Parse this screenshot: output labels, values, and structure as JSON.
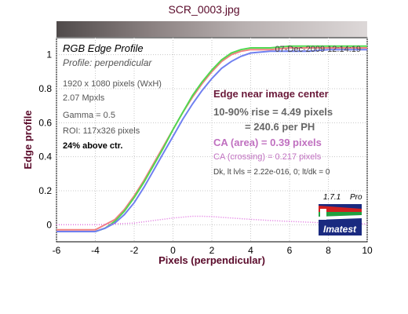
{
  "window_title": "SCR_0003.jpg",
  "logo": {
    "version": "1.7.1",
    "edition": "Pro",
    "brand": "Imatest"
  },
  "chart_data": {
    "type": "line",
    "title": "RGB Edge Profile",
    "subtitle": "Profile: perpendicular",
    "date": "07-Dec-2009 12:14:19",
    "xlabel": "Pixels (perpendicular)",
    "ylabel": "Edge profile",
    "xlim": [
      -6,
      10
    ],
    "ylim": [
      -0.1,
      1.1
    ],
    "xticks": [
      "-6",
      "-4",
      "-2",
      "0",
      "2",
      "4",
      "6",
      "8",
      "10"
    ],
    "yticks": [
      "0",
      "0.2",
      "0.4",
      "0.6",
      "0.8",
      "1"
    ],
    "grid": true,
    "info_lines": [
      "1920 x 1080 pixels (WxH)",
      "2.07 Mpxls",
      "Gamma = 0.5",
      "ROI: 117x326 pixels"
    ],
    "info_bold": "24% above ctr.",
    "annotations": {
      "heading": "Edge near image center",
      "rise": "10-90% rise = 4.49 pixels",
      "per_ph": "= 240.6 per PH",
      "ca_area": "CA (area) = 0.39 pixels",
      "ca_crossing": "CA (crossing) = 0.217 pixels",
      "dk_line": "Dk, lt lvls = 2.22e-016, 0;  lt/dk = 0"
    },
    "series": [
      {
        "color": "#f08080",
        "x": [
          -6,
          -4.5,
          -4,
          -3.5,
          -3,
          -2.5,
          -2,
          -1.5,
          -1,
          -0.5,
          0,
          0.5,
          1,
          1.5,
          2,
          2.5,
          3,
          3.5,
          4,
          5,
          6,
          7,
          8,
          9,
          10
        ],
        "y": [
          -0.03,
          -0.03,
          -0.03,
          0,
          0.03,
          0.09,
          0.17,
          0.26,
          0.36,
          0.46,
          0.56,
          0.66,
          0.75,
          0.83,
          0.9,
          0.96,
          1.0,
          1.02,
          1.03,
          1.03,
          1.04,
          1.04,
          1.04,
          1.04,
          1.04
        ]
      },
      {
        "color": "#50d850",
        "x": [
          -6,
          -4.5,
          -4,
          -3.5,
          -3,
          -2.5,
          -2,
          -1.5,
          -1,
          -0.5,
          0,
          0.5,
          1,
          1.5,
          2,
          2.5,
          3,
          3.5,
          4,
          5,
          6,
          7,
          8,
          9,
          10
        ],
        "y": [
          -0.04,
          -0.04,
          -0.04,
          -0.02,
          0.02,
          0.08,
          0.16,
          0.25,
          0.35,
          0.45,
          0.56,
          0.66,
          0.76,
          0.84,
          0.91,
          0.97,
          1.01,
          1.03,
          1.04,
          1.04,
          1.05,
          1.05,
          1.05,
          1.05,
          1.05
        ]
      },
      {
        "color": "#7080f0",
        "x": [
          -6,
          -4.5,
          -4,
          -3.5,
          -3,
          -2.5,
          -2,
          -1.5,
          -1,
          -0.5,
          0,
          0.5,
          1,
          1.5,
          2,
          2.5,
          3,
          3.5,
          4,
          5,
          6,
          7,
          8,
          9,
          10
        ],
        "y": [
          -0.04,
          -0.04,
          -0.04,
          -0.02,
          0.01,
          0.06,
          0.13,
          0.22,
          0.32,
          0.42,
          0.52,
          0.62,
          0.71,
          0.79,
          0.86,
          0.92,
          0.96,
          0.99,
          1.01,
          1.02,
          1.02,
          1.02,
          1.03,
          1.03,
          1.03
        ]
      },
      {
        "color": "#e070e0",
        "dashed": true,
        "x": [
          -6,
          -4,
          -2,
          -1,
          0,
          1,
          1.5,
          2,
          3,
          4,
          5,
          6,
          7,
          8,
          9,
          10
        ],
        "y": [
          0,
          0,
          0.01,
          0.025,
          0.04,
          0.05,
          0.05,
          0.048,
          0.04,
          0.032,
          0.025,
          0.02,
          0.015,
          0.01,
          0.008,
          0.005
        ]
      }
    ]
  }
}
